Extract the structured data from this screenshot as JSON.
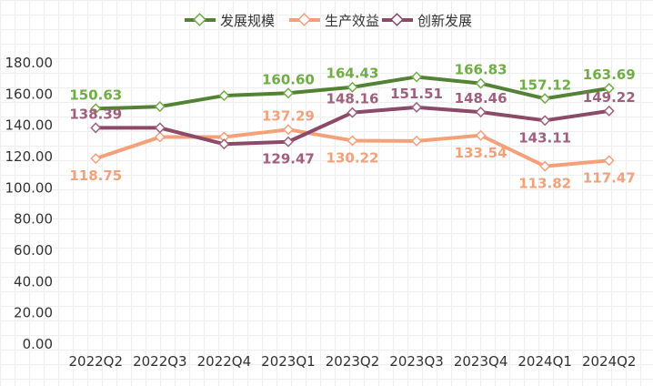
{
  "chart_data": {
    "type": "line",
    "categories": [
      "2022Q2",
      "2022Q3",
      "2022Q4",
      "2023Q1",
      "2023Q2",
      "2023Q3",
      "2023Q4",
      "2024Q1",
      "2024Q2"
    ],
    "y_ticks": [
      "0.00",
      "20.00",
      "40.00",
      "60.00",
      "80.00",
      "100.00",
      "120.00",
      "140.00",
      "160.00",
      "180.00"
    ],
    "ylim": [
      0,
      180
    ],
    "grid": false,
    "legend_position": "top",
    "series": [
      {
        "name": "发展规模",
        "color": "#548235",
        "label_color": "#70AD47",
        "values": [
          150.63,
          152.0,
          159.0,
          160.6,
          164.43,
          171.0,
          166.83,
          157.12,
          163.69
        ],
        "labels": [
          "150.63",
          "",
          "",
          "160.60",
          "164.43",
          "",
          "166.83",
          "157.12",
          "163.69"
        ]
      },
      {
        "name": "生产效益",
        "color": "#F4A17A",
        "label_color": "#F4A17A",
        "values": [
          118.75,
          132.5,
          132.5,
          137.29,
          130.22,
          130.0,
          133.54,
          113.82,
          117.47
        ],
        "labels": [
          "118.75",
          "",
          "",
          "137.29",
          "130.22",
          "",
          "133.54",
          "113.82",
          "117.47"
        ]
      },
      {
        "name": "创新发展",
        "color": "#8B4A67",
        "label_color": "#A0607C",
        "values": [
          138.39,
          138.39,
          128.0,
          129.47,
          148.16,
          151.51,
          148.46,
          143.11,
          149.22
        ],
        "labels": [
          "138.39",
          "",
          "",
          "129.47",
          "148.16",
          "151.51",
          "148.46",
          "143.11",
          "149.22"
        ]
      }
    ]
  }
}
